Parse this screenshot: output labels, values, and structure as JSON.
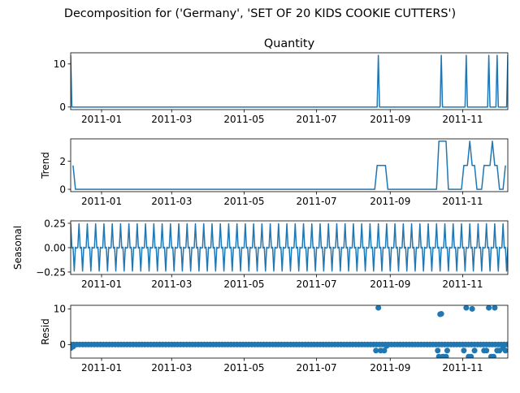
{
  "figure": {
    "suptitle": "Decomposition for ('Germany', 'SET OF 20 KIDS COOKIE CUTTERS')"
  },
  "colors": {
    "series": "#1f77b4",
    "axis": "#000000",
    "background": "#ffffff"
  },
  "chart_data": [
    {
      "type": "line",
      "panel": "observed",
      "title": "Quantity",
      "ylabel": "",
      "x_range": [
        "2010-12-06",
        "2011-12-09"
      ],
      "x_ticks": [
        "2011-01-01",
        "2011-03-01",
        "2011-05-01",
        "2011-07-01",
        "2011-09-01",
        "2011-11-01"
      ],
      "x_tick_labels": [
        "2011-01",
        "2011-03",
        "2011-05",
        "2011-07",
        "2011-09",
        "2011-11"
      ],
      "y_ticks": [
        0,
        10
      ],
      "ylim": [
        -0.6,
        12.6
      ],
      "grid": false,
      "baseline": 0,
      "spikes": [
        {
          "x": "2010-12-06",
          "y": 12
        },
        {
          "x": "2011-08-22",
          "y": 12
        },
        {
          "x": "2011-10-14",
          "y": 12
        },
        {
          "x": "2011-11-04",
          "y": 12
        },
        {
          "x": "2011-11-23",
          "y": 12
        },
        {
          "x": "2011-11-30",
          "y": 12
        },
        {
          "x": "2011-12-09",
          "y": 12
        }
      ]
    },
    {
      "type": "line",
      "panel": "trend",
      "title": "",
      "ylabel": "Trend",
      "x_range": [
        "2010-12-06",
        "2011-12-09"
      ],
      "x_ticks": [
        "2011-01-01",
        "2011-03-01",
        "2011-05-01",
        "2011-07-01",
        "2011-09-01",
        "2011-11-01"
      ],
      "x_tick_labels": [
        "2011-01",
        "2011-03",
        "2011-05",
        "2011-07",
        "2011-09",
        "2011-11"
      ],
      "y_ticks": [
        0,
        2
      ],
      "ylim": [
        -0.17,
        3.6
      ],
      "grid": false,
      "points": [
        {
          "x": "2010-12-08",
          "y": 1.7
        },
        {
          "x": "2010-12-10",
          "y": 0
        },
        {
          "x": "2011-08-19",
          "y": 0
        },
        {
          "x": "2011-08-21",
          "y": 1.7
        },
        {
          "x": "2011-08-28",
          "y": 1.7
        },
        {
          "x": "2011-08-30",
          "y": 0
        },
        {
          "x": "2011-10-10",
          "y": 0
        },
        {
          "x": "2011-10-12",
          "y": 3.43
        },
        {
          "x": "2011-10-18",
          "y": 3.43
        },
        {
          "x": "2011-10-20",
          "y": 0
        },
        {
          "x": "2011-10-31",
          "y": 0
        },
        {
          "x": "2011-11-02",
          "y": 1.7
        },
        {
          "x": "2011-11-05",
          "y": 1.7
        },
        {
          "x": "2011-11-07",
          "y": 3.43
        },
        {
          "x": "2011-11-09",
          "y": 1.7
        },
        {
          "x": "2011-11-11",
          "y": 1.7
        },
        {
          "x": "2011-11-13",
          "y": 0
        },
        {
          "x": "2011-11-17",
          "y": 0
        },
        {
          "x": "2011-11-19",
          "y": 1.7
        },
        {
          "x": "2011-11-24",
          "y": 1.7
        },
        {
          "x": "2011-11-26",
          "y": 3.43
        },
        {
          "x": "2011-11-28",
          "y": 1.7
        },
        {
          "x": "2011-11-30",
          "y": 1.7
        },
        {
          "x": "2011-12-02",
          "y": 0
        },
        {
          "x": "2011-12-05",
          "y": 0
        },
        {
          "x": "2011-12-07",
          "y": 1.7
        }
      ]
    },
    {
      "type": "line",
      "panel": "seasonal",
      "title": "",
      "ylabel": "Seasonal",
      "x_range": [
        "2010-12-06",
        "2011-12-09"
      ],
      "x_ticks": [
        "2011-01-01",
        "2011-03-01",
        "2011-05-01",
        "2011-07-01",
        "2011-09-01",
        "2011-11-01"
      ],
      "x_tick_labels": [
        "2011-01",
        "2011-03",
        "2011-05",
        "2011-07",
        "2011-09",
        "2011-11"
      ],
      "y_ticks": [
        -0.25,
        0.0,
        0.25
      ],
      "y_tick_labels": [
        "−0.25",
        "0.00",
        "0.25"
      ],
      "ylim": [
        -0.275,
        0.275
      ],
      "grid": false,
      "period_days": 7,
      "weekly_pattern": [
        0.245,
        -0.005,
        0.005,
        -0.24,
        0.005,
        -0.005,
        0.0
      ]
    },
    {
      "type": "scatter",
      "panel": "resid",
      "title": "",
      "ylabel": "Resid",
      "x_range": [
        "2010-12-06",
        "2011-12-09"
      ],
      "x_ticks": [
        "2011-01-01",
        "2011-03-01",
        "2011-05-01",
        "2011-07-01",
        "2011-09-01",
        "2011-11-01"
      ],
      "x_tick_labels": [
        "2011-01",
        "2011-03",
        "2011-05",
        "2011-07",
        "2011-09",
        "2011-11"
      ],
      "y_ticks": [
        0,
        10
      ],
      "ylim": [
        -3.8,
        11.0
      ],
      "grid": false,
      "baseline": 0,
      "baseline_step_days": 2.5,
      "points": [
        {
          "x": "2010-12-06",
          "y": -1.0
        },
        {
          "x": "2010-12-08",
          "y": -0.6
        },
        {
          "x": "2011-08-20",
          "y": -1.7
        },
        {
          "x": "2011-08-22",
          "y": 10.3
        },
        {
          "x": "2011-08-24",
          "y": -1.7
        },
        {
          "x": "2011-08-27",
          "y": -1.7
        },
        {
          "x": "2011-08-29",
          "y": -0.4
        },
        {
          "x": "2011-10-11",
          "y": -1.7
        },
        {
          "x": "2011-10-12",
          "y": -3.4
        },
        {
          "x": "2011-10-13",
          "y": 8.5
        },
        {
          "x": "2011-10-14",
          "y": 8.6
        },
        {
          "x": "2011-10-15",
          "y": -3.4
        },
        {
          "x": "2011-10-16",
          "y": -3.4
        },
        {
          "x": "2011-10-18",
          "y": -3.4
        },
        {
          "x": "2011-10-19",
          "y": -1.7
        },
        {
          "x": "2011-11-02",
          "y": -1.7
        },
        {
          "x": "2011-11-04",
          "y": 10.3
        },
        {
          "x": "2011-11-06",
          "y": -3.4
        },
        {
          "x": "2011-11-08",
          "y": -3.4
        },
        {
          "x": "2011-11-09",
          "y": 10.0
        },
        {
          "x": "2011-11-11",
          "y": -1.7
        },
        {
          "x": "2011-11-19",
          "y": -1.7
        },
        {
          "x": "2011-11-21",
          "y": -1.7
        },
        {
          "x": "2011-11-23",
          "y": 10.3
        },
        {
          "x": "2011-11-25",
          "y": -3.4
        },
        {
          "x": "2011-11-27",
          "y": -3.4
        },
        {
          "x": "2011-11-28",
          "y": 10.3
        },
        {
          "x": "2011-11-30",
          "y": -1.7
        },
        {
          "x": "2011-12-02",
          "y": -1.7
        },
        {
          "x": "2011-12-05",
          "y": -1.0
        },
        {
          "x": "2011-12-07",
          "y": -1.7
        }
      ]
    }
  ]
}
